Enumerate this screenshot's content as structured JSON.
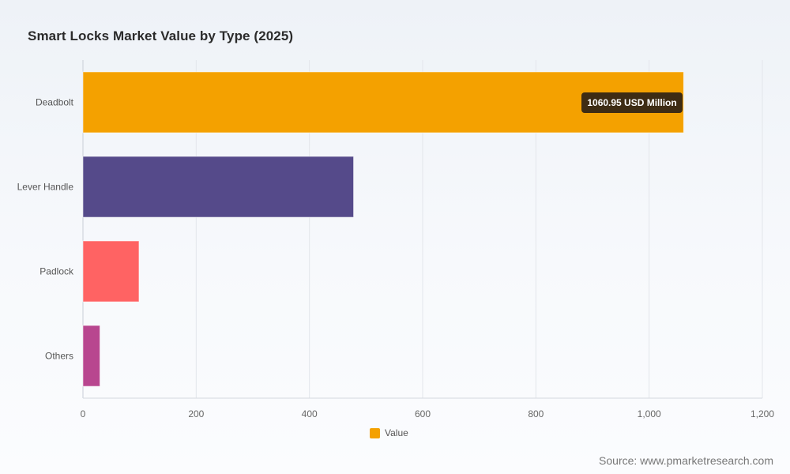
{
  "chart_data": {
    "type": "bar",
    "orientation": "horizontal",
    "title": "Smart Locks Market Value by Type (2025)",
    "categories": [
      "Deadbolt",
      "Lever Handle",
      "Padlock",
      "Others"
    ],
    "series": [
      {
        "name": "Value",
        "values": [
          1060.95,
          478,
          99,
          30
        ],
        "colors": [
          "#f4a100",
          "#554a8a",
          "#ff6363",
          "#b8468f"
        ]
      }
    ],
    "xlim": [
      0,
      1200
    ],
    "x_ticks": [
      "0",
      "200",
      "400",
      "600",
      "800",
      "1,000",
      "1,200"
    ],
    "x_tick_values": [
      0,
      200,
      400,
      600,
      800,
      1000,
      1200
    ],
    "grid": true,
    "legend_position": "bottom-center",
    "annotation": {
      "category": "Deadbolt",
      "text": "1060.95 USD Million"
    }
  },
  "legend": {
    "label": "Value",
    "color": "#f4a100"
  },
  "source": "Source: www.pmarketresearch.com"
}
